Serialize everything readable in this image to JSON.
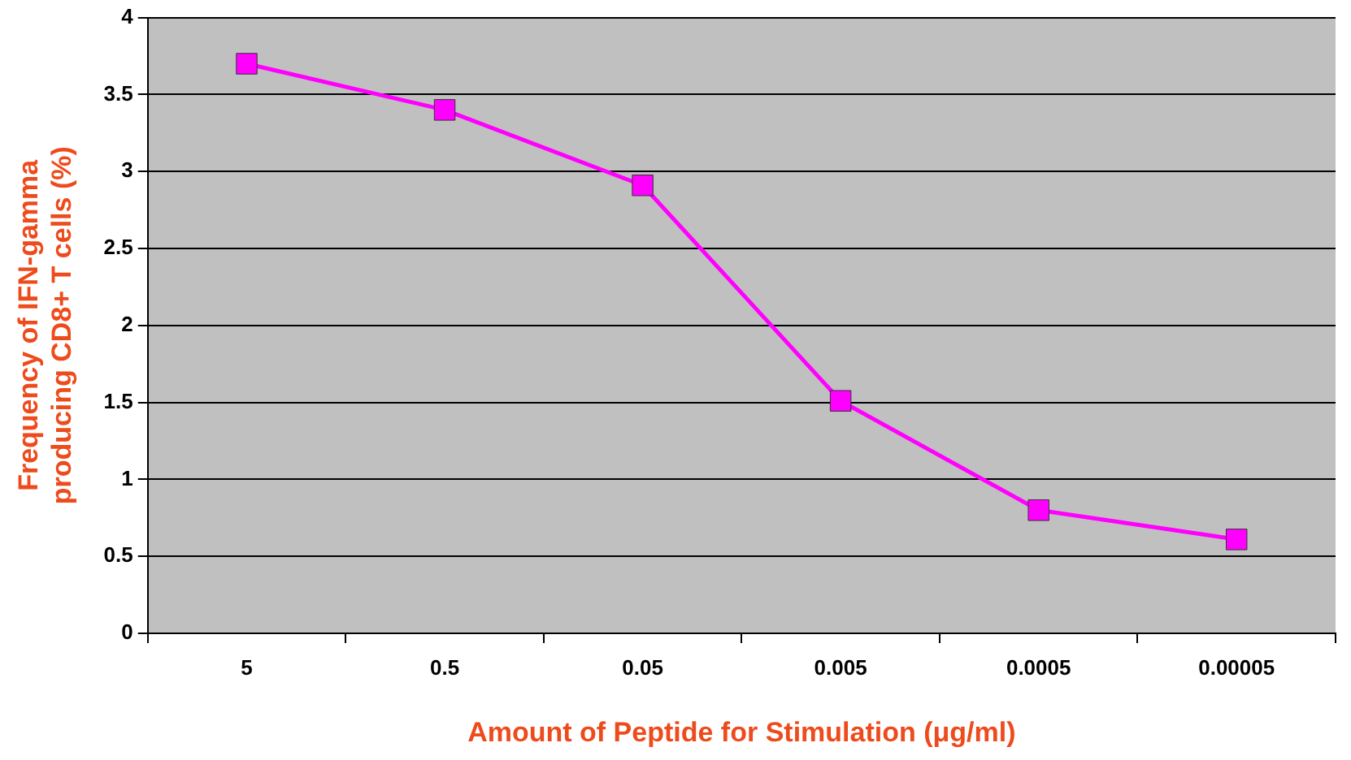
{
  "chart_data": {
    "type": "line",
    "xlabel": "Amount of Peptide for Stimulation (μg/ml)",
    "ylabel": "Frequency of IFN-gamma\nproducing CD8+ T cells (%)",
    "categories": [
      "5",
      "0.5",
      "0.05",
      "0.005",
      "0.0005",
      "0.00005"
    ],
    "series": [
      {
        "color": "#ff00ff",
        "values": [
          3.7,
          3.4,
          2.91,
          1.51,
          0.8,
          0.61
        ]
      }
    ],
    "ylim": [
      0,
      4
    ],
    "yticks": [
      0,
      0.5,
      1,
      1.5,
      2,
      2.5,
      3,
      3.5,
      4
    ],
    "grid": "y",
    "legend": false,
    "marker": "square",
    "line_style": "solid"
  }
}
